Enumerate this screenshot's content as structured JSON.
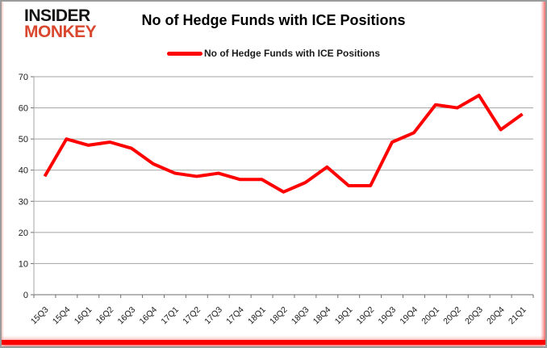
{
  "logo": {
    "line1": "INSIDER",
    "line2": "MONKEY",
    "line1_color": "#141414",
    "line2_color": "#d9472f"
  },
  "header": {
    "title": "No of Hedge Funds with ICE Positions"
  },
  "legend": {
    "label": "No of Hedge Funds with ICE Positions",
    "swatch_color": "#ff0000"
  },
  "chart_data": {
    "type": "line",
    "title": "No of Hedge Funds with ICE Positions",
    "categories": [
      "15Q3",
      "15Q4",
      "16Q1",
      "16Q2",
      "16Q3",
      "16Q4",
      "17Q1",
      "17Q2",
      "17Q3",
      "17Q4",
      "18Q1",
      "18Q2",
      "18Q3",
      "18Q4",
      "19Q1",
      "19Q2",
      "19Q3",
      "19Q4",
      "20Q1",
      "20Q2",
      "20Q3",
      "20Q4",
      "21Q1"
    ],
    "series": [
      {
        "name": "No of Hedge Funds with ICE Positions",
        "color": "#ff0000",
        "values": [
          38,
          50,
          48,
          49,
          47,
          42,
          39,
          38,
          39,
          37,
          37,
          33,
          36,
          41,
          35,
          35,
          49,
          52,
          61,
          60,
          64,
          53,
          58
        ]
      }
    ],
    "xlabel": "",
    "ylabel": "",
    "ylim": [
      0,
      70
    ],
    "ytick_interval": 10,
    "grid": true,
    "legend_position": "top",
    "line_width": 4,
    "grid_color": "#a3a3a3",
    "axis_color": "#6e6e6e",
    "tick_label_color": "#1a1a1a"
  },
  "frame": {
    "border_color": "#9b9b9b",
    "accent_color": "#fb0202"
  }
}
